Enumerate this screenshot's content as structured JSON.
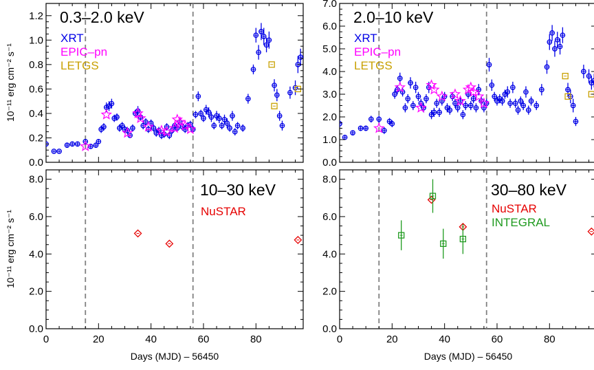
{
  "colors": {
    "XRT": "#0000e6",
    "EPIC-pn": "#ff00ff",
    "LETGS": "#c8a000",
    "NuSTAR": "#e60000",
    "INTEGRAL": "#1f9a1f",
    "marker_line": "#808080"
  },
  "vlines": [
    15,
    56
  ],
  "chart_data": [
    {
      "type": "scatter",
      "title": "0.3–2.0 keV",
      "xlabel": "",
      "ylabel": "10⁻¹¹ erg cm⁻² s⁻¹",
      "xlim": [
        0,
        98
      ],
      "ylim": [
        0,
        1.3
      ],
      "xticks": [
        0,
        20,
        40,
        60,
        80
      ],
      "yticks": [
        0.0,
        0.2,
        0.4,
        0.6,
        0.8,
        1.0,
        1.2
      ],
      "ytick_labels": [
        "0.0",
        "0.2",
        "0.4",
        "0.6",
        "0.8",
        "1.0",
        "1.2"
      ],
      "legend": [
        "XRT",
        "EPIC–pn",
        "LETGS"
      ],
      "series": [
        {
          "name": "XRT",
          "marker": "circle",
          "x": [
            0,
            3,
            5,
            8,
            10,
            12,
            15,
            17,
            19,
            20,
            21,
            22,
            23,
            24,
            25,
            26,
            27,
            28,
            29,
            30,
            31,
            32,
            33,
            34,
            35,
            36,
            37,
            38,
            39,
            40,
            41,
            42,
            43,
            44,
            45,
            46,
            47,
            48,
            49,
            50,
            51,
            52,
            53,
            54,
            55,
            56,
            57,
            58,
            59,
            60,
            61,
            62,
            63,
            64,
            65,
            66,
            67,
            68,
            69,
            70,
            71,
            72,
            73,
            75,
            77,
            79,
            80,
            81,
            82,
            83,
            84,
            85,
            87,
            88,
            89,
            90,
            93,
            95,
            96,
            97
          ],
          "y": [
            0.15,
            0.09,
            0.09,
            0.14,
            0.15,
            0.15,
            0.17,
            0.13,
            0.14,
            0.17,
            0.27,
            0.29,
            0.45,
            0.46,
            0.48,
            0.36,
            0.37,
            0.28,
            0.3,
            0.27,
            0.26,
            0.22,
            0.28,
            0.4,
            0.42,
            0.37,
            0.3,
            0.33,
            0.27,
            0.32,
            0.28,
            0.24,
            0.26,
            0.22,
            0.23,
            0.29,
            0.22,
            0.26,
            0.3,
            0.28,
            0.33,
            0.29,
            0.27,
            0.3,
            0.31,
            0.27,
            0.39,
            0.54,
            0.4,
            0.36,
            0.43,
            0.41,
            0.37,
            0.3,
            0.38,
            0.36,
            0.3,
            0.35,
            0.32,
            0.28,
            0.38,
            0.25,
            0.3,
            0.28,
            0.52,
            0.76,
            1.04,
            0.9,
            1.07,
            1.03,
            0.96,
            1.0,
            0.63,
            0.55,
            0.38,
            0.3,
            0.57,
            0.61,
            0.8,
            0.86
          ],
          "yerr": [
            0.02,
            0.01,
            0.01,
            0.02,
            0.02,
            0.02,
            0.02,
            0.02,
            0.02,
            0.02,
            0.03,
            0.03,
            0.04,
            0.04,
            0.04,
            0.03,
            0.03,
            0.03,
            0.03,
            0.03,
            0.03,
            0.02,
            0.03,
            0.03,
            0.04,
            0.03,
            0.03,
            0.03,
            0.03,
            0.03,
            0.03,
            0.03,
            0.03,
            0.03,
            0.03,
            0.03,
            0.03,
            0.03,
            0.03,
            0.03,
            0.03,
            0.03,
            0.03,
            0.03,
            0.03,
            0.03,
            0.03,
            0.04,
            0.03,
            0.03,
            0.04,
            0.04,
            0.04,
            0.03,
            0.04,
            0.04,
            0.03,
            0.04,
            0.04,
            0.03,
            0.04,
            0.03,
            0.03,
            0.03,
            0.04,
            0.04,
            0.06,
            0.06,
            0.07,
            0.07,
            0.06,
            0.07,
            0.05,
            0.05,
            0.04,
            0.04,
            0.05,
            0.06,
            0.07,
            0.07
          ]
        },
        {
          "name": "EPIC–pn",
          "marker": "star",
          "x": [
            15,
            23,
            31,
            35,
            36,
            39,
            44,
            46,
            49,
            50,
            51,
            53,
            55
          ],
          "y": [
            0.13,
            0.39,
            0.24,
            0.4,
            0.36,
            0.29,
            0.26,
            0.25,
            0.28,
            0.35,
            0.33,
            0.3,
            0.27
          ]
        },
        {
          "name": "LETGS",
          "marker": "square",
          "x": [
            86,
            87,
            96
          ],
          "y": [
            0.8,
            0.46,
            0.6
          ]
        }
      ]
    },
    {
      "type": "scatter",
      "title": "2.0–10 keV",
      "xlabel": "",
      "ylabel": "",
      "xlim": [
        0,
        98
      ],
      "ylim": [
        0,
        7.0
      ],
      "xticks": [
        0,
        20,
        40,
        60,
        80
      ],
      "yticks": [
        0.0,
        1.0,
        2.0,
        3.0,
        4.0,
        5.0,
        6.0,
        7.0
      ],
      "ytick_labels": [
        "0.0",
        "1.0",
        "2.0",
        "3.0",
        "4.0",
        "5.0",
        "6.0",
        "7.0"
      ],
      "legend": [
        "XRT",
        "EPIC–pn",
        "LETGS"
      ],
      "series": [
        {
          "name": "XRT",
          "marker": "circle",
          "x": [
            0,
            2,
            5,
            8,
            10,
            12,
            15,
            17,
            19,
            20,
            21,
            22,
            23,
            24,
            25,
            26,
            27,
            28,
            29,
            30,
            31,
            32,
            33,
            34,
            35,
            36,
            37,
            38,
            39,
            40,
            41,
            42,
            43,
            44,
            45,
            46,
            47,
            48,
            49,
            50,
            51,
            52,
            53,
            54,
            55,
            56,
            57,
            58,
            59,
            60,
            61,
            62,
            63,
            64,
            65,
            66,
            67,
            68,
            69,
            70,
            71,
            72,
            73,
            75,
            77,
            79,
            80,
            81,
            82,
            83,
            84,
            85,
            87,
            88,
            89,
            90,
            93,
            95,
            96,
            97
          ],
          "y": [
            1.7,
            1.1,
            1.3,
            1.5,
            1.5,
            1.9,
            1.9,
            1.4,
            1.8,
            1.7,
            3.0,
            3.2,
            3.7,
            3.1,
            2.4,
            2.8,
            3.5,
            2.5,
            3.3,
            2.9,
            2.6,
            2.4,
            2.8,
            3.3,
            2.1,
            2.2,
            2.6,
            2.2,
            2.7,
            2.9,
            2.4,
            2.3,
            2.9,
            2.6,
            2.4,
            2.7,
            2.1,
            2.5,
            3.0,
            2.5,
            2.8,
            2.4,
            3.2,
            2.7,
            2.4,
            2.6,
            4.3,
            3.4,
            2.9,
            2.7,
            2.8,
            2.7,
            3.0,
            3.1,
            2.6,
            3.3,
            2.6,
            2.3,
            2.7,
            2.5,
            3.1,
            2.3,
            2.7,
            2.5,
            3.2,
            4.2,
            5.3,
            5.7,
            5.0,
            5.4,
            5.1,
            5.6,
            3.2,
            2.9,
            2.5,
            1.8,
            4.0,
            3.8,
            3.5,
            3.6
          ],
          "yerr": [
            0.15,
            0.1,
            0.1,
            0.12,
            0.12,
            0.15,
            0.15,
            0.15,
            0.15,
            0.15,
            0.2,
            0.2,
            0.25,
            0.2,
            0.2,
            0.2,
            0.25,
            0.2,
            0.25,
            0.2,
            0.2,
            0.2,
            0.2,
            0.25,
            0.2,
            0.2,
            0.2,
            0.2,
            0.2,
            0.2,
            0.2,
            0.2,
            0.2,
            0.2,
            0.2,
            0.2,
            0.2,
            0.2,
            0.2,
            0.2,
            0.2,
            0.2,
            0.25,
            0.2,
            0.2,
            0.2,
            0.3,
            0.25,
            0.2,
            0.2,
            0.2,
            0.2,
            0.2,
            0.25,
            0.2,
            0.25,
            0.2,
            0.2,
            0.2,
            0.2,
            0.25,
            0.2,
            0.2,
            0.2,
            0.25,
            0.3,
            0.35,
            0.35,
            0.35,
            0.35,
            0.35,
            0.35,
            0.3,
            0.3,
            0.3,
            0.2,
            0.3,
            0.3,
            0.3,
            0.3
          ]
        },
        {
          "name": "EPIC–pn",
          "marker": "star",
          "x": [
            15,
            23,
            31,
            35,
            36,
            39,
            44,
            46,
            49,
            50,
            51,
            53,
            55
          ],
          "y": [
            1.5,
            3.3,
            2.4,
            3.4,
            3.2,
            2.9,
            3.0,
            2.7,
            3.2,
            3.3,
            3.1,
            2.9,
            2.6
          ]
        },
        {
          "name": "LETGS",
          "marker": "square",
          "x": [
            86,
            87,
            96
          ],
          "y": [
            3.8,
            2.9,
            3.0
          ]
        }
      ]
    },
    {
      "type": "scatter",
      "title": "10–30 keV",
      "xlabel": "Days (MJD) – 56450",
      "ylabel": "10⁻¹¹ erg cm⁻² s⁻¹",
      "xlim": [
        0,
        98
      ],
      "ylim": [
        0,
        8.5
      ],
      "xticks": [
        0,
        20,
        40,
        60,
        80
      ],
      "yticks": [
        0.0,
        2.0,
        4.0,
        6.0,
        8.0
      ],
      "ytick_labels": [
        "0.0",
        "2.0",
        "4.0",
        "6.0",
        "8.0"
      ],
      "legend": [
        "NuSTAR"
      ],
      "series": [
        {
          "name": "NuSTAR",
          "marker": "diamond",
          "x": [
            35,
            47,
            96
          ],
          "y": [
            5.1,
            4.55,
            4.75
          ]
        }
      ]
    },
    {
      "type": "scatter",
      "title": "30–80 keV",
      "xlabel": "Days (MJD) – 56450",
      "ylabel": "",
      "xlim": [
        0,
        98
      ],
      "ylim": [
        0,
        8.5
      ],
      "xticks": [
        0,
        20,
        40,
        60,
        80
      ],
      "yticks": [
        0.0,
        2.0,
        4.0,
        6.0,
        8.0
      ],
      "ytick_labels": [
        "0.0",
        "2.0",
        "4.0",
        "6.0",
        "8.0"
      ],
      "legend": [
        "NuSTAR",
        "INTEGRAL"
      ],
      "series": [
        {
          "name": "NuSTAR",
          "marker": "diamond",
          "x": [
            35,
            47,
            96
          ],
          "y": [
            6.9,
            5.45,
            5.2
          ]
        },
        {
          "name": "INTEGRAL",
          "marker": "square",
          "x": [
            23.5,
            35.5,
            39.5,
            47
          ],
          "y": [
            5.0,
            7.1,
            4.55,
            4.8
          ],
          "yerr": [
            0.8,
            0.9,
            0.8,
            0.8
          ]
        }
      ]
    }
  ]
}
